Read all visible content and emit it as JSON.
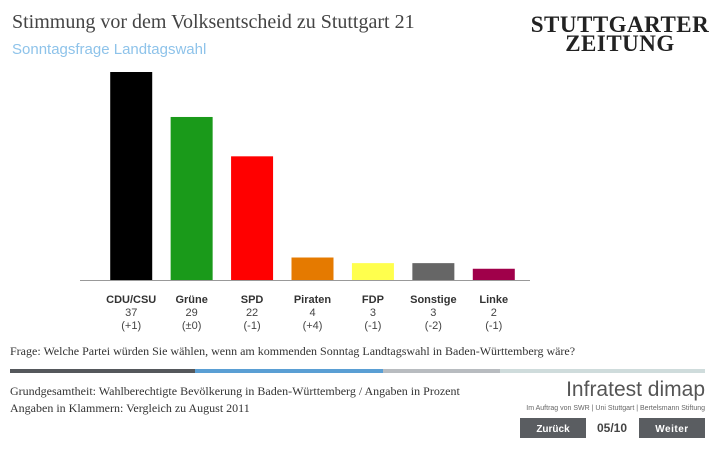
{
  "chart_data": {
    "type": "bar",
    "title": "Stimmung vor dem Volksentscheid zu Stuttgart 21",
    "subtitle": "Sonntagsfrage Landtagswahl",
    "categories": [
      "CDU/CSU",
      "Grüne",
      "SPD",
      "Piraten",
      "FDP",
      "Sonstige",
      "Linke"
    ],
    "values": [
      37,
      29,
      22,
      4,
      3,
      3,
      2
    ],
    "change_labels": [
      "(+1)",
      "(±0)",
      "(-1)",
      "(+4)",
      "(-1)",
      "(-2)",
      "(-1)"
    ],
    "colors": [
      "#000000",
      "#1a9a1a",
      "#ff0000",
      "#e57a00",
      "#ffff4d",
      "#666666",
      "#a0004a"
    ]
  },
  "logo": [
    "STUTTGARTER",
    "ZEITUNG"
  ],
  "question": "Frage: Welche Partei würden Sie wählen, wenn am kommenden Sonntag Landtagswahl in Baden-Württemberg wäre?",
  "footnotes": [
    "Grundgesamtheit: Wahlberechtigte Bevölkerung in Baden-Württemberg / Angaben in Prozent",
    "Angaben in Klammern: Vergleich zu August 2011"
  ],
  "brand": "Infratest dimap",
  "brand_note": "Im Auftrag von SWR | Uni Stuttgart | Bertelsmann Stiftung",
  "buttons": {
    "back": "Zurück",
    "next": "Weiter"
  },
  "page_indicator": "05/10"
}
